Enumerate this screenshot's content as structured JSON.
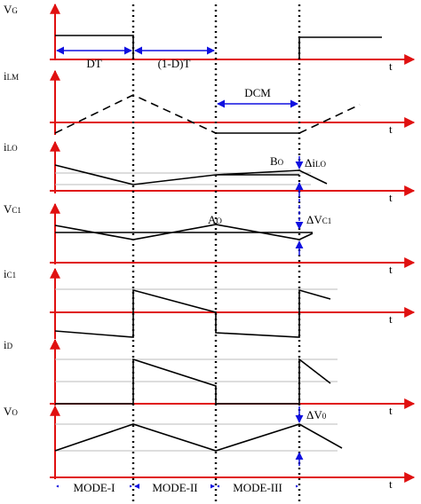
{
  "panels": [
    {
      "symbol": "V",
      "subscript": "G",
      "axis": "t"
    },
    {
      "symbol": "i",
      "subscript": "LM",
      "axis": "t"
    },
    {
      "symbol": "i",
      "subscript": "LO",
      "axis": "t"
    },
    {
      "symbol": "V",
      "subscript": "C1",
      "axis": "t"
    },
    {
      "symbol": "i",
      "subscript": "C1",
      "axis": "t"
    },
    {
      "symbol": "i",
      "subscript": "D",
      "axis": "t"
    },
    {
      "symbol": "V",
      "subscript": "O",
      "axis": "t"
    }
  ],
  "intervals": [
    "DT",
    "(1-D)T",
    "DCM"
  ],
  "annotations": [
    {
      "symbol": "B",
      "subscript": "O"
    },
    {
      "symbol": "Δi",
      "subscript": "LO"
    },
    {
      "symbol": "A",
      "subscript": "O"
    },
    {
      "symbol": "ΔV",
      "subscript": "C1"
    },
    {
      "symbol": "ΔV",
      "subscript": "0"
    }
  ],
  "modes": [
    "MODE-I",
    "MODE-II",
    "MODE-III"
  ]
}
